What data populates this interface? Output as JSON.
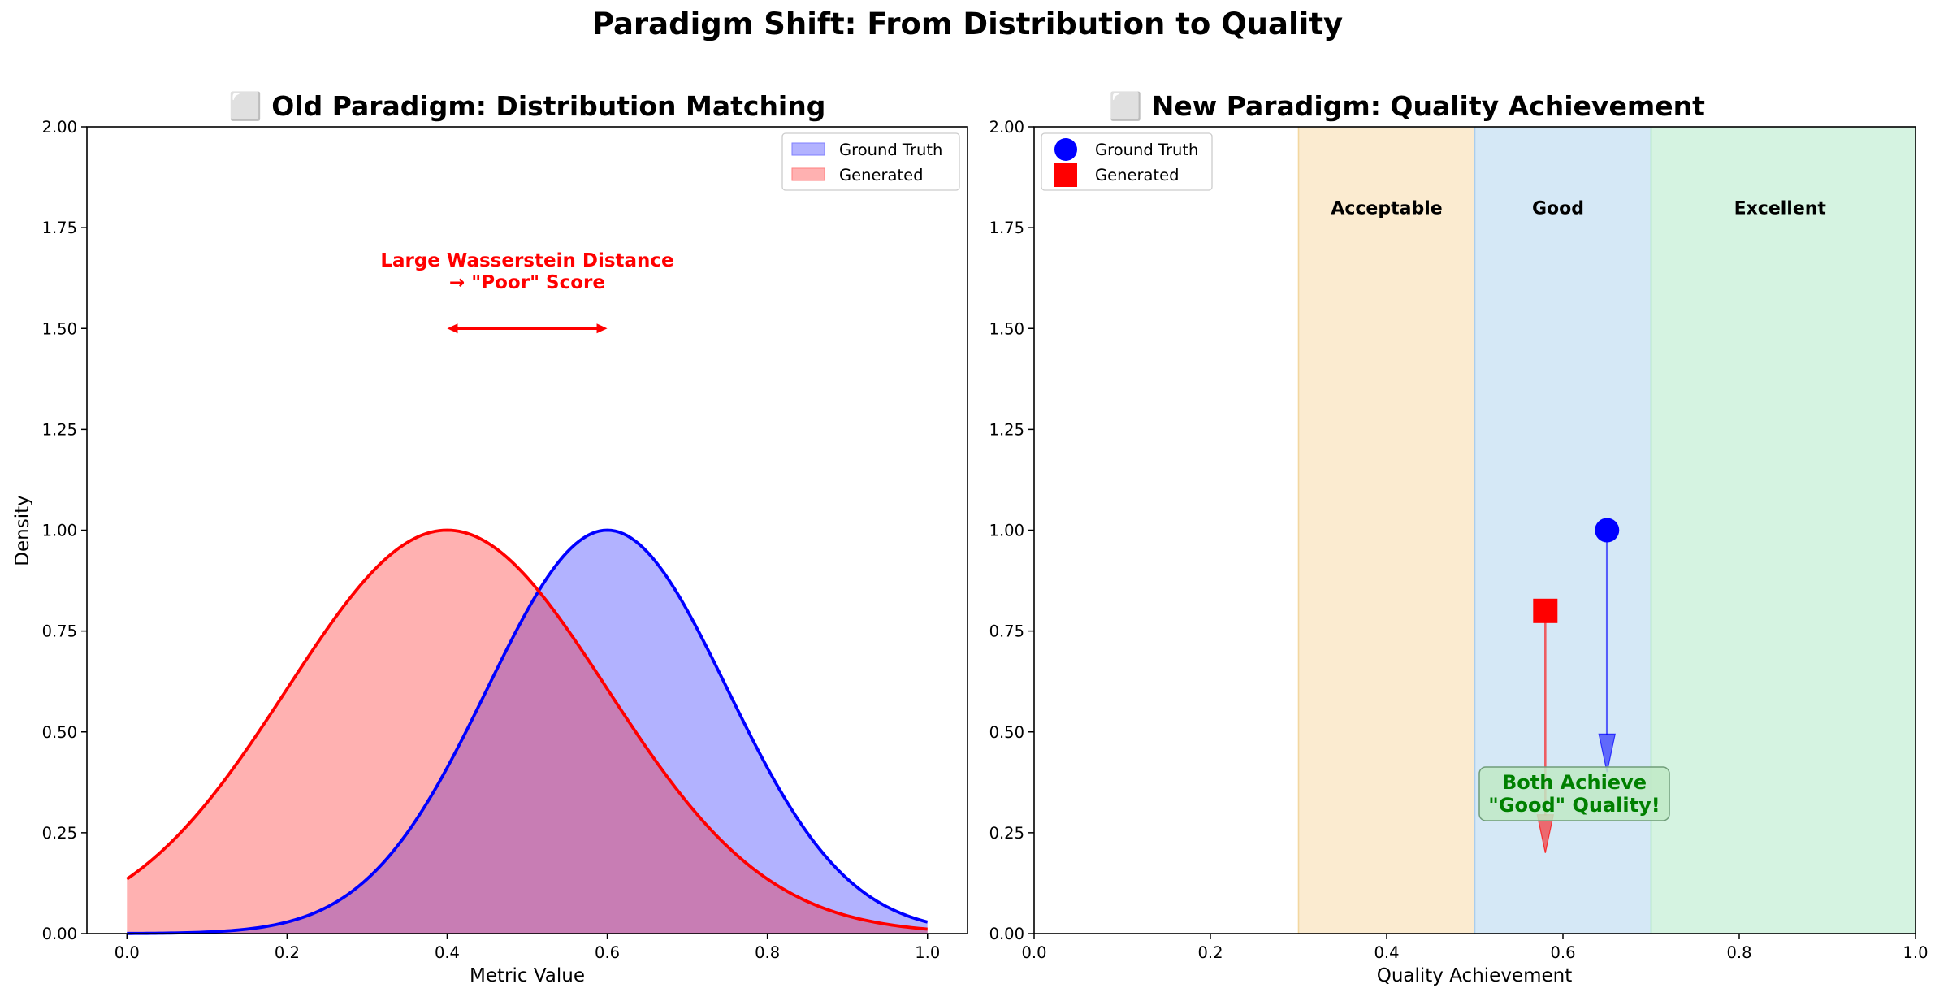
{
  "figure": {
    "suptitle": "Paradigm Shift: From Distribution to Quality"
  },
  "colors": {
    "ground_truth": "#0000ff",
    "generated": "#ff0000",
    "gt_fill": "#b2b2ff",
    "gen_fill": "#ffb1b1",
    "overlap_fill": "#c87db4",
    "annotation_red": "#ff0000",
    "success_green": "#008000",
    "acceptable_band": "#fbebd0",
    "good_band": "#d5e8f6",
    "excellent_band": "#d5f3e1"
  },
  "chart_data": [
    {
      "type": "area",
      "title": "⬜ Old Paradigm: Distribution Matching",
      "xlabel": "Metric Value",
      "ylabel": "Density",
      "xlim": [
        -0.05,
        1.05
      ],
      "ylim": [
        0,
        2.0
      ],
      "xticks": [
        "0.0",
        "0.2",
        "0.4",
        "0.6",
        "0.8",
        "1.0"
      ],
      "yticks": [
        "0.00",
        "0.25",
        "0.50",
        "0.75",
        "1.00",
        "1.25",
        "1.50",
        "1.75",
        "2.00"
      ],
      "grid": false,
      "legend": "upper right",
      "series": [
        {
          "name": "Ground Truth",
          "distribution": "gaussian",
          "mean": 0.6,
          "std": 0.15,
          "peak": 1.0,
          "x_range": [
            0,
            1
          ]
        },
        {
          "name": "Generated",
          "distribution": "gaussian",
          "mean": 0.4,
          "std": 0.2,
          "peak": 1.0,
          "x_range": [
            0,
            1
          ]
        }
      ],
      "annotation": {
        "text_line1": "Large Wasserstein Distance",
        "text_line2": "→ \"Poor\" Score",
        "text_pos": [
          0.5,
          1.6
        ],
        "arrow_from": [
          0.4,
          1.5
        ],
        "arrow_to": [
          0.6,
          1.5
        ]
      }
    },
    {
      "type": "scatter",
      "title": "⬜ New Paradigm: Quality Achievement",
      "xlabel": "Quality Achievement",
      "ylabel": "",
      "xlim": [
        0,
        1
      ],
      "ylim": [
        0,
        2.0
      ],
      "xticks": [
        "0.0",
        "0.2",
        "0.4",
        "0.6",
        "0.8",
        "1.0"
      ],
      "yticks": [
        "0.00",
        "0.25",
        "0.50",
        "0.75",
        "1.00",
        "1.25",
        "1.50",
        "1.75",
        "2.00"
      ],
      "grid": false,
      "legend": "upper left",
      "bands": [
        {
          "label": "Acceptable",
          "from": 0.3,
          "to": 0.5
        },
        {
          "label": "Good",
          "from": 0.5,
          "to": 0.7
        },
        {
          "label": "Excellent",
          "from": 0.7,
          "to": 1.0
        }
      ],
      "band_label_y": 1.8,
      "series": [
        {
          "name": "Ground Truth",
          "marker": "circle",
          "x": 0.65,
          "y": 1.0,
          "arrow_to_y": 0.4
        },
        {
          "name": "Generated",
          "marker": "square",
          "x": 0.58,
          "y": 0.8,
          "arrow_to_y": 0.2
        }
      ],
      "annotation": {
        "text_line1": "Both Achieve",
        "text_line2": "\"Good\" Quality!",
        "text_pos": [
          0.6,
          0.35
        ]
      }
    }
  ]
}
